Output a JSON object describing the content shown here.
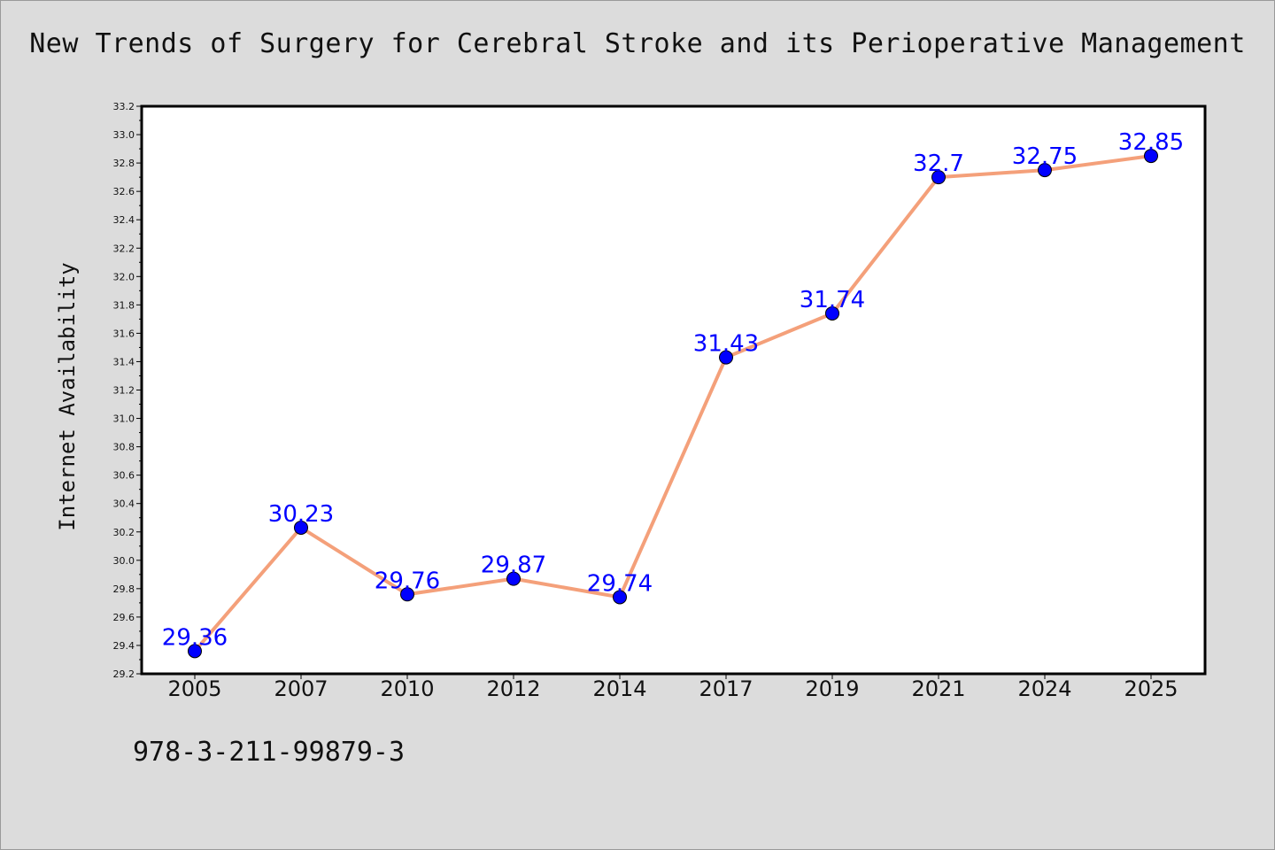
{
  "chart_data": {
    "type": "line",
    "title": "New Trends of Surgery for Cerebral Stroke and its Perioperative Management",
    "xlabel": "",
    "ylabel": "Internet Availability",
    "categories": [
      "2005",
      "2007",
      "2010",
      "2012",
      "2014",
      "2017",
      "2019",
      "2021",
      "2024",
      "2025"
    ],
    "series": [
      {
        "values": [
          29.36,
          30.23,
          29.76,
          29.87,
          29.74,
          31.43,
          31.74,
          32.7,
          32.75,
          32.85
        ],
        "data_labels": [
          "29.36",
          "30.23",
          "29.76",
          "29.87",
          "29.74",
          "31.43",
          "31.74",
          "32.7",
          "32.75",
          "32.85"
        ],
        "line_color": "#f4a07a",
        "marker_color": "#0000ff"
      }
    ],
    "ylim": [
      29.2,
      33.2
    ],
    "yticks": [
      "29.2",
      "29.4",
      "29.6",
      "29.8",
      "30.0",
      "30.2",
      "30.4",
      "30.6",
      "30.8",
      "31.0",
      "31.2",
      "31.4",
      "31.6",
      "31.8",
      "32.0",
      "32.2",
      "32.4",
      "32.6",
      "32.8",
      "33.0",
      "33.2"
    ],
    "grid": false,
    "label_color": "#0000ff"
  },
  "footnote": "978-3-211-99879-3"
}
